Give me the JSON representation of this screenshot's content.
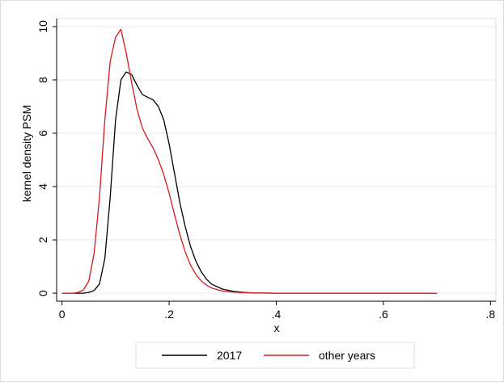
{
  "chart_data": {
    "type": "line",
    "title": "",
    "xlabel": "x",
    "ylabel": "kernel density PSM",
    "xlim": [
      -0.01,
      0.81
    ],
    "ylim": [
      -0.3,
      10.3
    ],
    "x_ticks": [
      0,
      0.2,
      0.4,
      0.6,
      0.8
    ],
    "x_tick_labels": [
      "0",
      ".2",
      ".4",
      ".6",
      ".8"
    ],
    "y_ticks": [
      0,
      2,
      4,
      6,
      8,
      10
    ],
    "y_tick_labels": [
      "0",
      "2",
      "4",
      "6",
      "8",
      "10"
    ],
    "grid": "horizontal",
    "legend_position": "bottom",
    "series": [
      {
        "name": "2017",
        "color": "#000000",
        "x": [
          0.0,
          0.04,
          0.05,
          0.06,
          0.07,
          0.08,
          0.09,
          0.1,
          0.11,
          0.12,
          0.13,
          0.14,
          0.15,
          0.16,
          0.17,
          0.18,
          0.19,
          0.2,
          0.21,
          0.22,
          0.23,
          0.24,
          0.25,
          0.26,
          0.27,
          0.28,
          0.3,
          0.32,
          0.34,
          0.36,
          0.4,
          0.5,
          0.6,
          0.7
        ],
        "y": [
          0.0,
          0.0,
          0.03,
          0.1,
          0.35,
          1.3,
          3.6,
          6.5,
          8.0,
          8.3,
          8.2,
          7.8,
          7.45,
          7.35,
          7.25,
          7.0,
          6.5,
          5.6,
          4.5,
          3.4,
          2.5,
          1.75,
          1.2,
          0.8,
          0.52,
          0.33,
          0.15,
          0.07,
          0.03,
          0.01,
          0.0,
          0.0,
          0.0,
          0.0
        ]
      },
      {
        "name": "other years",
        "color": "#d7191c",
        "x": [
          0.0,
          0.02,
          0.03,
          0.04,
          0.05,
          0.06,
          0.07,
          0.08,
          0.09,
          0.1,
          0.11,
          0.12,
          0.13,
          0.14,
          0.15,
          0.16,
          0.17,
          0.18,
          0.19,
          0.2,
          0.21,
          0.22,
          0.23,
          0.24,
          0.25,
          0.26,
          0.27,
          0.28,
          0.3,
          0.32,
          0.34,
          0.36,
          0.4,
          0.5,
          0.6,
          0.7
        ],
        "y": [
          0.0,
          0.0,
          0.03,
          0.12,
          0.45,
          1.5,
          3.6,
          6.5,
          8.7,
          9.6,
          9.9,
          9.0,
          7.9,
          6.9,
          6.2,
          5.8,
          5.45,
          5.0,
          4.45,
          3.75,
          2.95,
          2.2,
          1.55,
          1.05,
          0.7,
          0.46,
          0.3,
          0.19,
          0.08,
          0.04,
          0.02,
          0.01,
          0.0,
          0.0,
          0.0,
          0.0
        ]
      }
    ]
  }
}
